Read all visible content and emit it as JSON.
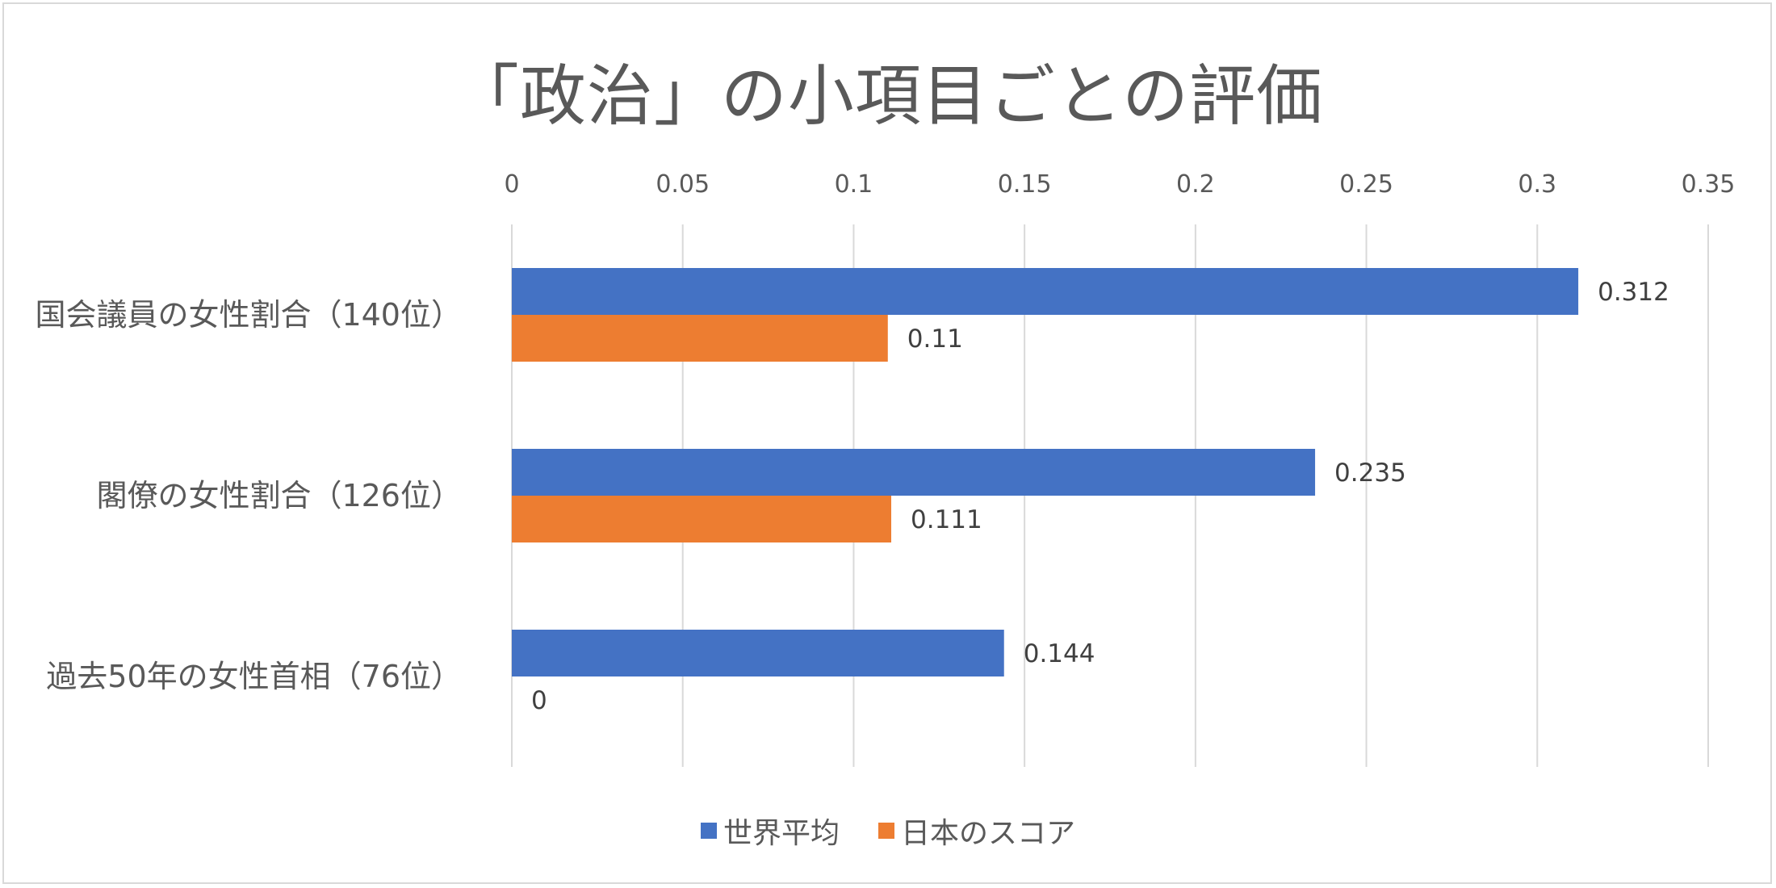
{
  "chart_data": {
    "type": "bar",
    "orientation": "horizontal",
    "title": "「政治」の小項目ごとの評価",
    "categories": [
      "国会議員の女性割合（140位）",
      "閣僚の女性割合（126位）",
      "過去50年の女性首相（76位）"
    ],
    "series": [
      {
        "name": "世界平均",
        "color": "#4472c4",
        "values": [
          0.312,
          0.235,
          0.144
        ]
      },
      {
        "name": "日本のスコア",
        "color": "#ed7d31",
        "values": [
          0.11,
          0.111,
          0
        ]
      }
    ],
    "data_labels": {
      "世界平均": [
        "0.312",
        "0.235",
        "0.144"
      ],
      "日本のスコア": [
        "0.11",
        "0.111",
        "0"
      ]
    },
    "xlim": [
      0,
      0.35
    ],
    "xticks": [
      "0",
      "0.05",
      "0.1",
      "0.15",
      "0.2",
      "0.25",
      "0.3",
      "0.35"
    ],
    "xaxis_position": "top",
    "grid": true,
    "legend_position": "bottom"
  }
}
